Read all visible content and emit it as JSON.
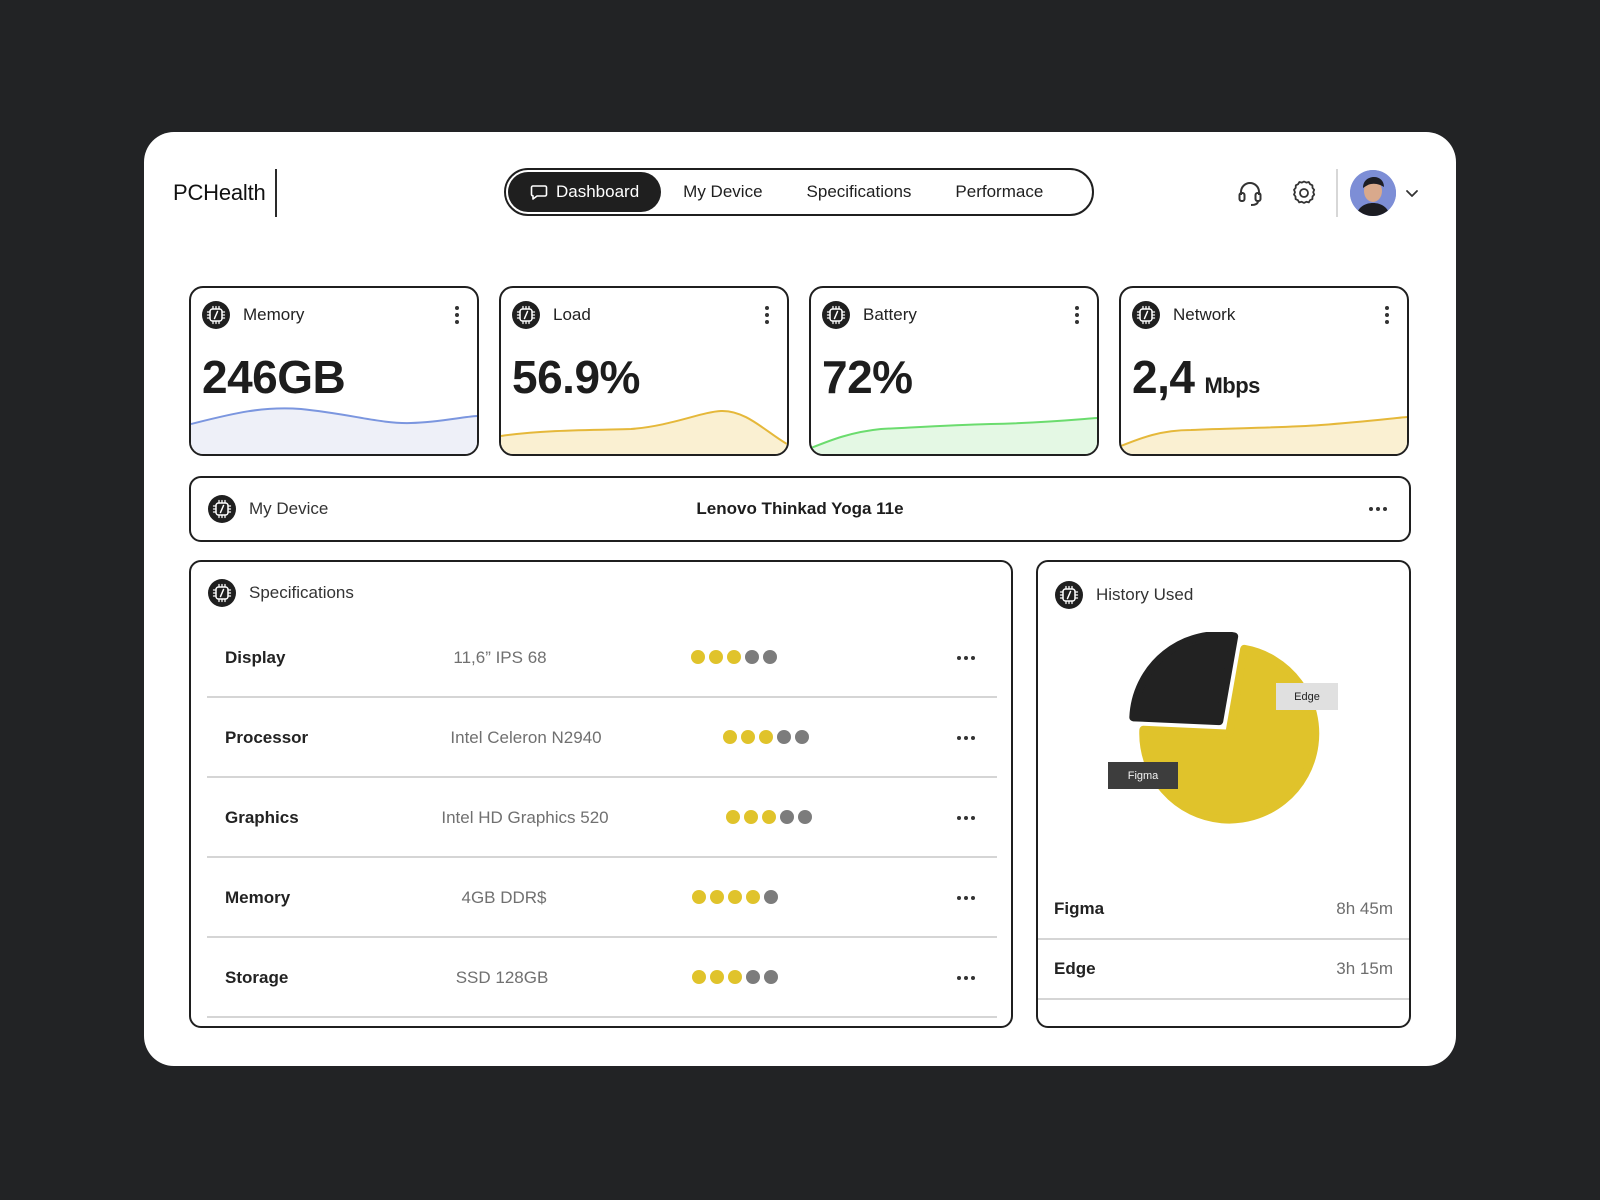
{
  "app": {
    "title": "PCHealth"
  },
  "nav": {
    "tabs": [
      {
        "label": "Dashboard",
        "active": true,
        "icon": "chat-bubble-icon"
      },
      {
        "label": "My Device"
      },
      {
        "label": "Specifications"
      },
      {
        "label": "Performace"
      }
    ]
  },
  "header_icons": [
    "headset-icon",
    "gear-icon",
    "avatar",
    "chevron-down-icon"
  ],
  "stats": [
    {
      "title": "Memory",
      "value": "246GB",
      "unit": "",
      "color": "#7b96df"
    },
    {
      "title": "Load",
      "value": "56.9%",
      "unit": "",
      "color": "#e5b83a"
    },
    {
      "title": "Battery",
      "value": "72%",
      "unit": "",
      "color": "#6bdc6e"
    },
    {
      "title": "Network",
      "value": "2,4",
      "unit": "Mbps",
      "color": "#e5b83a"
    }
  ],
  "device": {
    "label": "My Device",
    "model": "Lenovo Thinkad Yoga 11e"
  },
  "specs": {
    "title": "Specifications",
    "rows": [
      {
        "name": "Display",
        "value": "11,6” IPS 68",
        "rating": 3,
        "max": 5
      },
      {
        "name": "Processor",
        "value": "Intel Celeron N2940",
        "rating": 3,
        "max": 5
      },
      {
        "name": "Graphics",
        "value": "Intel HD Graphics 520",
        "rating": 3,
        "max": 5
      },
      {
        "name": "Memory",
        "value": "4GB DDR$",
        "rating": 4,
        "max": 5
      },
      {
        "name": "Storage",
        "value": "SSD 128GB",
        "rating": 3,
        "max": 5
      }
    ]
  },
  "history": {
    "title": "History Used",
    "chart_data": {
      "type": "pie",
      "categories": [
        "Figma",
        "Edge"
      ],
      "values": [
        525,
        195
      ],
      "colors": [
        "#e0c32b",
        "#222222"
      ]
    },
    "rows": [
      {
        "app": "Figma",
        "duration": "8h 45m"
      },
      {
        "app": "Edge",
        "duration": "3h 15m"
      }
    ]
  }
}
